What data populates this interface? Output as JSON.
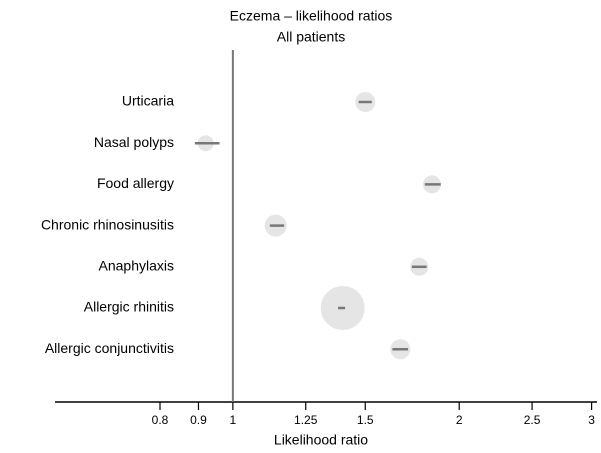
{
  "chart_data": {
    "type": "forest",
    "title": "Eczema – likelihood ratios",
    "subtitle": "All patients",
    "x_label": "Likelihood ratio",
    "log_x": true,
    "categories": [
      "Urticaria",
      "Nasal polyps",
      "Food allergy",
      "Chronic rhinosinusitis",
      "Anaphylaxis",
      "Allergic rhinitis",
      "Allergic conjunctivitis"
    ],
    "values": [
      1.5,
      0.92,
      1.84,
      1.14,
      1.77,
      1.4,
      1.67
    ],
    "lower": [
      1.47,
      0.89,
      1.8,
      1.12,
      1.73,
      1.38,
      1.63
    ],
    "upper": [
      1.53,
      0.96,
      1.89,
      1.17,
      1.81,
      1.41,
      1.71
    ],
    "sizes": [
      10,
      8,
      9,
      11,
      9,
      22,
      10
    ],
    "reference_line": 1,
    "xlim": [
      0.58,
      3.05
    ],
    "xticks": [
      0.8,
      0.9,
      1,
      1.25,
      1.5,
      2,
      2.5,
      3
    ],
    "bubble_color": "#e5e5e5",
    "line_color": "#777777"
  }
}
